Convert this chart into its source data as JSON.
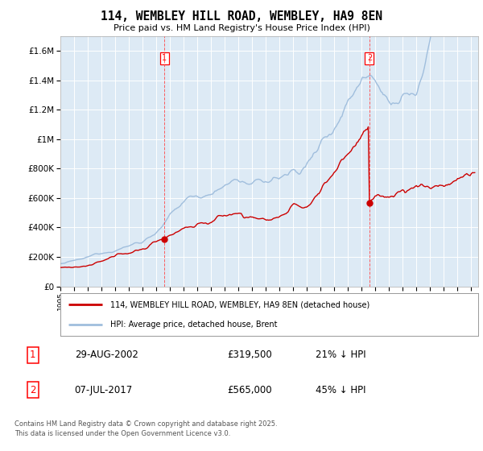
{
  "title": "114, WEMBLEY HILL ROAD, WEMBLEY, HA9 8EN",
  "subtitle": "Price paid vs. HM Land Registry's House Price Index (HPI)",
  "ylim": [
    0,
    1700000
  ],
  "yticks": [
    0,
    200000,
    400000,
    600000,
    800000,
    1000000,
    1200000,
    1400000,
    1600000
  ],
  "hpi_color": "#a0bedd",
  "price_color": "#cc0000",
  "vline_color": "#ff4444",
  "bg_color": "#ddeaf5",
  "marker1_price": 319500,
  "marker2_price": 565000,
  "legend_property": "114, WEMBLEY HILL ROAD, WEMBLEY, HA9 8EN (detached house)",
  "legend_hpi": "HPI: Average price, detached house, Brent",
  "table_row1": [
    "1",
    "29-AUG-2002",
    "£319,500",
    "21% ↓ HPI"
  ],
  "table_row2": [
    "2",
    "07-JUL-2017",
    "£565,000",
    "45% ↓ HPI"
  ],
  "footer": "Contains HM Land Registry data © Crown copyright and database right 2025.\nThis data is licensed under the Open Government Licence v3.0."
}
